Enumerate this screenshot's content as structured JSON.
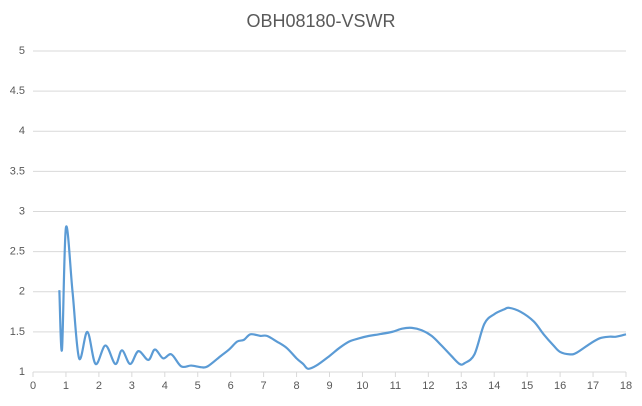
{
  "chart_data": {
    "type": "line",
    "title": "OBH08180-VSWR",
    "x": [
      0.8,
      0.88,
      1.0,
      1.2,
      1.4,
      1.65,
      1.9,
      2.2,
      2.5,
      2.7,
      2.95,
      3.2,
      3.5,
      3.7,
      3.95,
      4.2,
      4.5,
      4.8,
      5.1,
      5.3,
      5.7,
      5.95,
      6.2,
      6.4,
      6.6,
      6.9,
      7.1,
      7.4,
      7.7,
      8.0,
      8.2,
      8.35,
      8.6,
      9.0,
      9.3,
      9.6,
      9.9,
      10.2,
      10.5,
      10.9,
      11.2,
      11.5,
      11.8,
      12.1,
      12.4,
      12.7,
      12.95,
      13.1,
      13.4,
      13.7,
      14.0,
      14.3,
      14.45,
      14.8,
      15.2,
      15.5,
      15.8,
      16.0,
      16.3,
      16.5,
      16.9,
      17.2,
      17.5,
      17.7,
      18.0
    ],
    "series": [
      {
        "color": "#5b9bd5",
        "values": [
          2.02,
          1.28,
          2.8,
          2.0,
          1.17,
          1.5,
          1.1,
          1.33,
          1.1,
          1.27,
          1.1,
          1.26,
          1.15,
          1.28,
          1.17,
          1.22,
          1.07,
          1.08,
          1.06,
          1.07,
          1.2,
          1.28,
          1.38,
          1.4,
          1.47,
          1.45,
          1.45,
          1.38,
          1.3,
          1.17,
          1.1,
          1.04,
          1.08,
          1.2,
          1.3,
          1.38,
          1.42,
          1.45,
          1.47,
          1.5,
          1.54,
          1.55,
          1.52,
          1.45,
          1.33,
          1.2,
          1.1,
          1.11,
          1.22,
          1.6,
          1.72,
          1.78,
          1.8,
          1.75,
          1.63,
          1.47,
          1.33,
          1.25,
          1.22,
          1.24,
          1.35,
          1.42,
          1.44,
          1.44,
          1.47
        ]
      }
    ],
    "xlim": [
      0,
      18
    ],
    "xticks": [
      0,
      1,
      2,
      3,
      4,
      5,
      6,
      7,
      8,
      9,
      10,
      11,
      12,
      13,
      14,
      15,
      16,
      17,
      18
    ],
    "ylim": [
      1,
      5
    ],
    "yticks": [
      1,
      1.5,
      2,
      2.5,
      3,
      3.5,
      4,
      4.5,
      5
    ],
    "grid": true
  }
}
